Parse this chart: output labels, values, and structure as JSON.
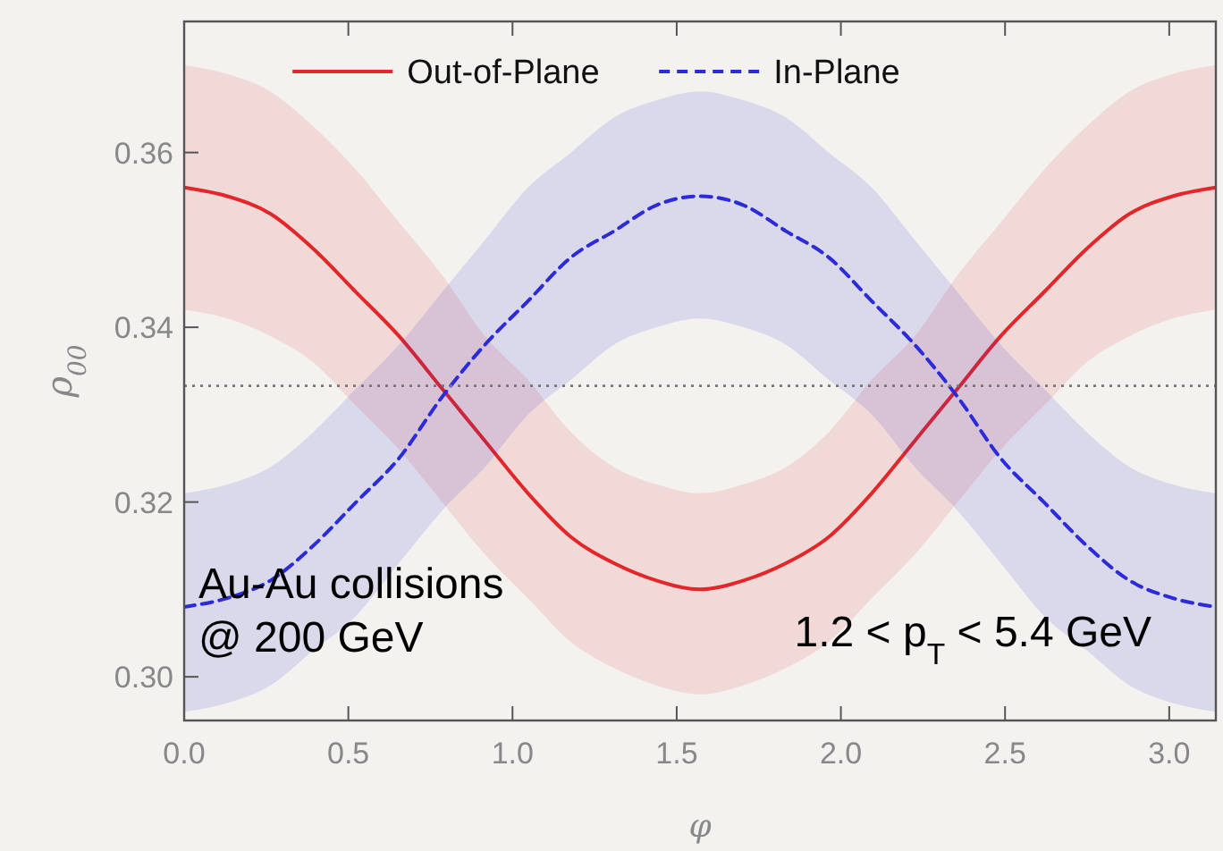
{
  "chart_data": {
    "type": "line",
    "xlabel": "φ",
    "ylabel": "ρ$_{00}$",
    "x": [
      0,
      0.131,
      0.262,
      0.393,
      0.524,
      0.654,
      0.785,
      0.916,
      1.047,
      1.178,
      1.309,
      1.44,
      1.571,
      1.702,
      1.833,
      1.963,
      2.094,
      2.225,
      2.356,
      2.487,
      2.618,
      2.749,
      2.88,
      3.011,
      3.142
    ],
    "series": [
      {
        "name": "Out-of-Plane",
        "color": "#e3262a",
        "line_style": "solid",
        "values": [
          0.356,
          0.355,
          0.353,
          0.349,
          0.344,
          0.339,
          0.333,
          0.327,
          0.321,
          0.316,
          0.313,
          0.311,
          0.31,
          0.311,
          0.313,
          0.316,
          0.321,
          0.327,
          0.333,
          0.339,
          0.344,
          0.349,
          0.353,
          0.355,
          0.356
        ],
        "lower": [
          0.342,
          0.341,
          0.339,
          0.336,
          0.331,
          0.326,
          0.32,
          0.314,
          0.309,
          0.304,
          0.301,
          0.299,
          0.298,
          0.299,
          0.301,
          0.304,
          0.309,
          0.314,
          0.32,
          0.326,
          0.331,
          0.336,
          0.339,
          0.341,
          0.342
        ],
        "upper": [
          0.37,
          0.369,
          0.367,
          0.363,
          0.358,
          0.352,
          0.346,
          0.339,
          0.334,
          0.328,
          0.324,
          0.322,
          0.321,
          0.322,
          0.324,
          0.328,
          0.334,
          0.339,
          0.346,
          0.352,
          0.358,
          0.363,
          0.367,
          0.369,
          0.37
        ]
      },
      {
        "name": "In-Plane",
        "color": "#2b2bd9",
        "line_style": "dashed",
        "values": [
          0.308,
          0.309,
          0.311,
          0.315,
          0.32,
          0.325,
          0.332,
          0.338,
          0.343,
          0.348,
          0.351,
          0.354,
          0.355,
          0.354,
          0.351,
          0.348,
          0.343,
          0.338,
          0.332,
          0.325,
          0.32,
          0.315,
          0.311,
          0.309,
          0.308
        ],
        "lower": [
          0.296,
          0.297,
          0.299,
          0.303,
          0.307,
          0.313,
          0.319,
          0.324,
          0.33,
          0.334,
          0.338,
          0.34,
          0.341,
          0.34,
          0.338,
          0.334,
          0.33,
          0.324,
          0.319,
          0.313,
          0.307,
          0.303,
          0.299,
          0.297,
          0.296
        ],
        "upper": [
          0.321,
          0.322,
          0.324,
          0.328,
          0.333,
          0.338,
          0.344,
          0.35,
          0.356,
          0.36,
          0.364,
          0.366,
          0.367,
          0.366,
          0.364,
          0.36,
          0.356,
          0.35,
          0.344,
          0.338,
          0.333,
          0.328,
          0.324,
          0.322,
          0.321
        ]
      }
    ],
    "xlim": [
      0,
      3.142
    ],
    "ylim": [
      0.295,
      0.375
    ],
    "xticks": [
      {
        "value": 0,
        "label": "0.0"
      },
      0.5,
      {
        "value": 1,
        "label": "1.0"
      },
      1.5,
      {
        "value": 2,
        "label": "2.0"
      },
      2.5,
      {
        "value": 3,
        "label": "3.0"
      }
    ],
    "yticks": [
      {
        "value": 0.3,
        "label": "0.30"
      },
      0.32,
      0.34,
      0.36
    ],
    "ref_lines": [
      {
        "axis": "y",
        "value": 0.3333,
        "color": "#777777",
        "line_style": "dotted"
      }
    ],
    "legend": "top",
    "grid": false,
    "annotations": [
      "Au-Au collisions\n@ 200 GeV",
      "1.2 < p$_{T}$ < 5.4 GeV"
    ]
  }
}
